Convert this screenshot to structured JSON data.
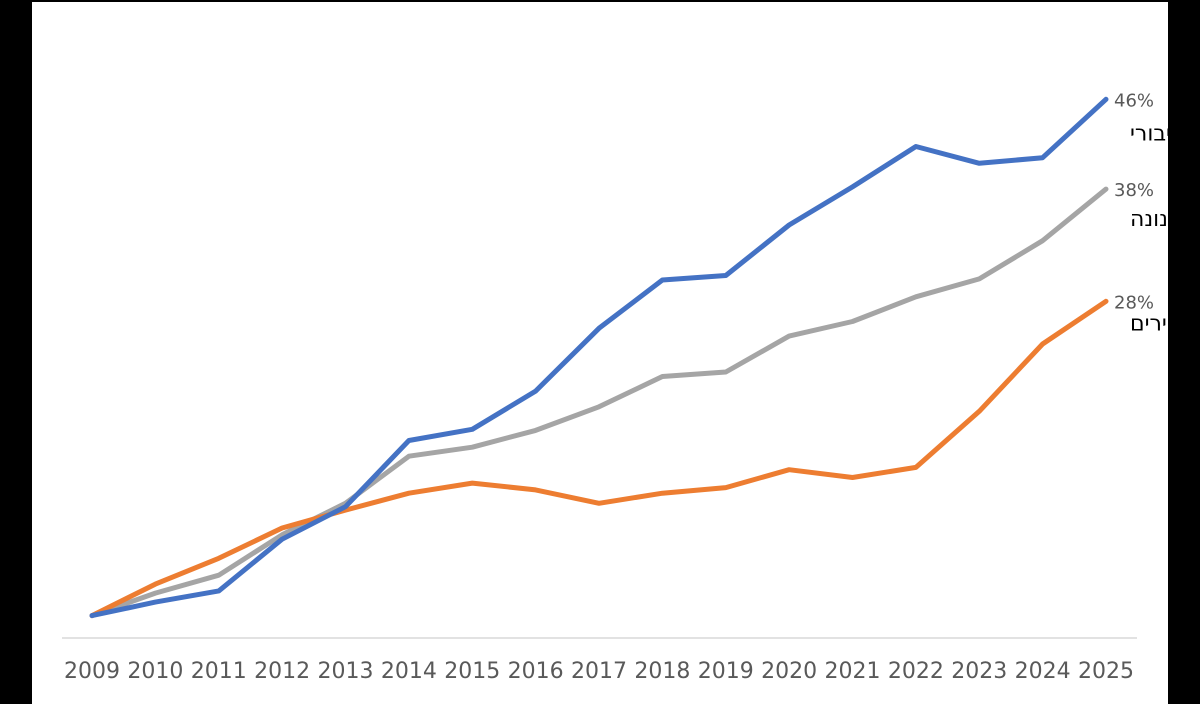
{
  "chart_data": {
    "type": "line",
    "categories": [
      "2009",
      "2010",
      "2011",
      "2012",
      "2013",
      "2014",
      "2015",
      "2016",
      "2017",
      "2018",
      "2019",
      "2020",
      "2021",
      "2022",
      "2023",
      "2024",
      "2025"
    ],
    "ylim": [
      -2,
      52
    ],
    "grid": false,
    "legend": "inline-right",
    "series": [
      {
        "name": "שכר ציבורי",
        "color": "#4472C4",
        "values": [
          0,
          1.2,
          2.2,
          6.8,
          9.7,
          15.6,
          16.6,
          20.0,
          25.6,
          29.9,
          30.3,
          34.8,
          38.2,
          41.8,
          40.3,
          40.8,
          46.0
        ],
        "end_label": "46%"
      },
      {
        "name": "סה\"כ ארנונה",
        "color": "#A5A5A5",
        "values": [
          0,
          2.0,
          3.6,
          7.2,
          10.0,
          14.2,
          15.0,
          16.5,
          18.6,
          21.3,
          21.7,
          24.9,
          26.2,
          28.4,
          30.0,
          33.4,
          38.0
        ],
        "end_label": "38%"
      },
      {
        "name": "מדד מחירים",
        "color": "#ED7D31",
        "values": [
          0,
          2.8,
          5.1,
          7.8,
          9.4,
          10.9,
          11.8,
          11.2,
          10.0,
          10.9,
          11.4,
          13.0,
          12.3,
          13.2,
          18.2,
          24.2,
          28.0
        ],
        "end_label": "28%"
      }
    ]
  }
}
